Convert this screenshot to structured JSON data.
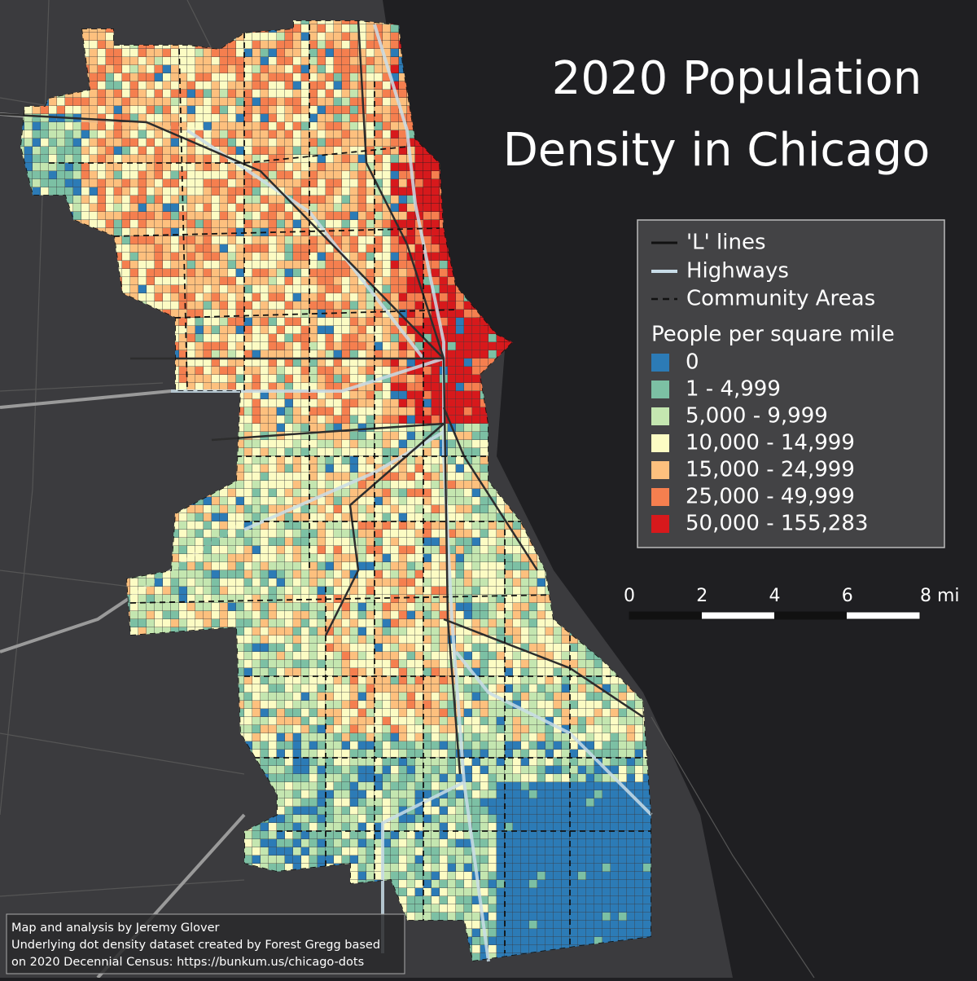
{
  "title": {
    "line1": "2020 Population",
    "line2": "Density in Chicago"
  },
  "legend": {
    "lines": [
      "'L' lines",
      "Highways",
      "Community Areas"
    ],
    "heading": "People per square mile",
    "classes": [
      {
        "label": "0",
        "color": "#2c7bb6"
      },
      {
        "label": "1 - 4,999",
        "color": "#7cc0a4"
      },
      {
        "label": "5,000 - 9,999",
        "color": "#c4e6b0"
      },
      {
        "label": "10,000 - 14,999",
        "color": "#fcfcc4"
      },
      {
        "label": "15,000 - 24,999",
        "color": "#fdc07e"
      },
      {
        "label": "25,000 - 49,999",
        "color": "#f57f4f"
      },
      {
        "label": "50,000 - 155,283",
        "color": "#d7191c"
      }
    ]
  },
  "scale_bar": {
    "labels": [
      "0",
      "2",
      "4",
      "6",
      "8 mi"
    ]
  },
  "credit": {
    "lines": [
      "Map and analysis by Jeremy Glover",
      "Underlying dot density dataset created by Forest Gregg based",
      "on 2020 Decennial Census: https://bunkum.us/chicago-dots"
    ]
  }
}
